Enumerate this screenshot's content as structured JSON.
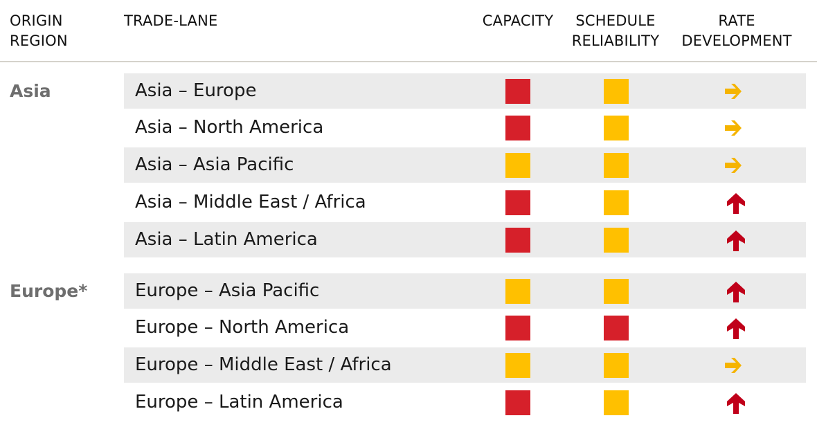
{
  "header": {
    "origin_line1": "ORIGIN",
    "origin_line2": "REGION",
    "trade_lane": "TRADE-LANE",
    "capacity": "CAPACITY",
    "schedule_line1": "SCHEDULE",
    "schedule_line2": "RELIABILITY",
    "rate_line1": "RATE",
    "rate_line2": "DEVELOPMENT"
  },
  "colors": {
    "red": "#d6202a",
    "amber": "#ffc000",
    "arrow_amber": "#f5b400",
    "arrow_red": "#c0001a"
  },
  "regions": [
    {
      "name": "Asia",
      "lanes": [
        {
          "label": "Asia – Europe",
          "capacity": "red",
          "schedule": "amber",
          "rate": "arrow-right-icon"
        },
        {
          "label": "Asia – North America",
          "capacity": "red",
          "schedule": "amber",
          "rate": "arrow-right-icon"
        },
        {
          "label": "Asia – Asia Pacific",
          "capacity": "amber",
          "schedule": "amber",
          "rate": "arrow-right-icon"
        },
        {
          "label": "Asia – Middle East / Africa",
          "capacity": "red",
          "schedule": "amber",
          "rate": "arrow-up-icon"
        },
        {
          "label": "Asia – Latin America",
          "capacity": "red",
          "schedule": "amber",
          "rate": "arrow-up-icon"
        }
      ]
    },
    {
      "name": "Europe*",
      "lanes": [
        {
          "label": "Europe – Asia Pacific",
          "capacity": "amber",
          "schedule": "amber",
          "rate": "arrow-up-icon"
        },
        {
          "label": "Europe – North America",
          "capacity": "red",
          "schedule": "red",
          "rate": "arrow-up-icon"
        },
        {
          "label": "Europe – Middle East / Africa",
          "capacity": "amber",
          "schedule": "amber",
          "rate": "arrow-right-icon"
        },
        {
          "label": "Europe – Latin America",
          "capacity": "red",
          "schedule": "amber",
          "rate": "arrow-up-icon"
        }
      ]
    }
  ]
}
